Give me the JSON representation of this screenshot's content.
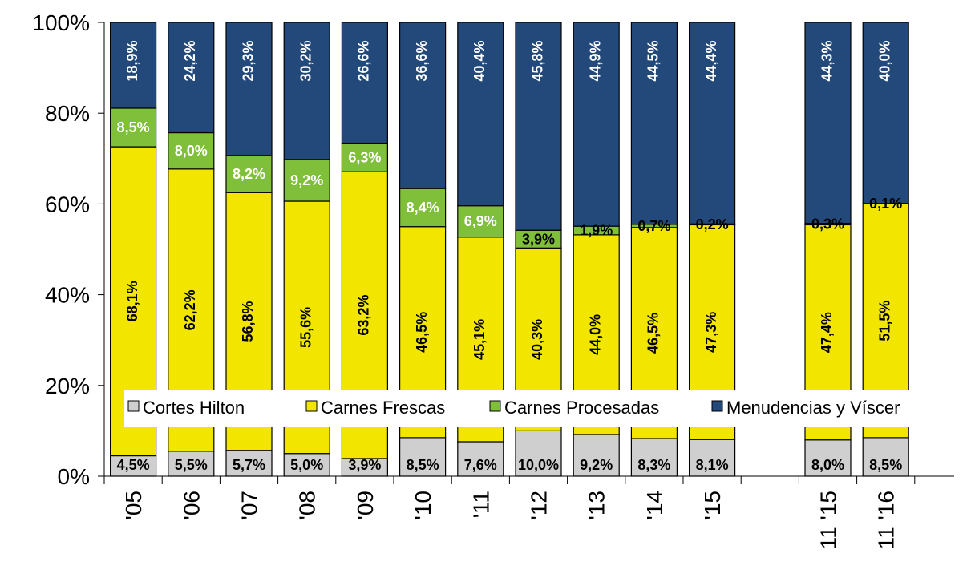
{
  "chart_data": {
    "type": "bar",
    "stacked": true,
    "title": "",
    "xlabel": "",
    "ylabel": "",
    "ylim": [
      0,
      100
    ],
    "y_ticks": [
      "0%",
      "20%",
      "40%",
      "60%",
      "80%",
      "100%"
    ],
    "grid": false,
    "legend_position": "bottom-inside",
    "categories": [
      "'05",
      "'06",
      "'07",
      "'08",
      "'09",
      "'10",
      "'11",
      "'12",
      "'13",
      "'14",
      "'15",
      "",
      "11 '15",
      "11 '16"
    ],
    "series": [
      {
        "name": "Cortes Hilton",
        "color": "#cfcfcf",
        "label_color": "#000000",
        "values": [
          4.5,
          5.5,
          5.7,
          5.0,
          3.9,
          8.5,
          7.6,
          10.0,
          9.2,
          8.3,
          8.1,
          null,
          8.0,
          8.5
        ],
        "labels": [
          "4,5%",
          "5,5%",
          "5,7%",
          "5,0%",
          "3,9%",
          "8,5%",
          "7,6%",
          "10,0%",
          "9,2%",
          "8,3%",
          "8,1%",
          "",
          "8,0%",
          "8,5%"
        ]
      },
      {
        "name": "Carnes Frescas",
        "color": "#f2e600",
        "label_color": "#000000",
        "values": [
          68.1,
          62.2,
          56.8,
          55.6,
          63.2,
          46.5,
          45.1,
          40.3,
          44.0,
          46.5,
          47.3,
          null,
          47.4,
          51.5
        ],
        "labels": [
          "68,1%",
          "62,2%",
          "56,8%",
          "55,6%",
          "63,2%",
          "46,5%",
          "45,1%",
          "40,3%",
          "44,0%",
          "46,5%",
          "47,3%",
          "",
          "47,4%",
          "51,5%"
        ]
      },
      {
        "name": "Carnes Procesadas",
        "color": "#7fbf3a",
        "label_color": "#ffffff",
        "values": [
          8.5,
          8.0,
          8.2,
          9.2,
          6.3,
          8.4,
          6.9,
          3.9,
          1.9,
          0.7,
          0.2,
          null,
          0.3,
          0.1
        ],
        "labels": [
          "8,5%",
          "8,0%",
          "8,2%",
          "9,2%",
          "6,3%",
          "8,4%",
          "6,9%",
          "3,9%",
          "1,9%",
          "0,7%",
          "0,2%",
          "",
          "0,3%",
          "0,1%"
        ]
      },
      {
        "name": "Menudencias y Víscer",
        "color": "#23497a",
        "label_color": "#ffffff",
        "values": [
          18.9,
          24.2,
          29.3,
          30.2,
          26.6,
          36.6,
          40.4,
          45.8,
          44.9,
          44.5,
          44.4,
          null,
          44.3,
          40.0
        ],
        "labels": [
          "18,9%",
          "24,2%",
          "29,3%",
          "30,2%",
          "26,6%",
          "36,6%",
          "40,4%",
          "45,8%",
          "44,9%",
          "44,5%",
          "44,4%",
          "",
          "44,3%",
          "40,0%"
        ]
      }
    ]
  }
}
